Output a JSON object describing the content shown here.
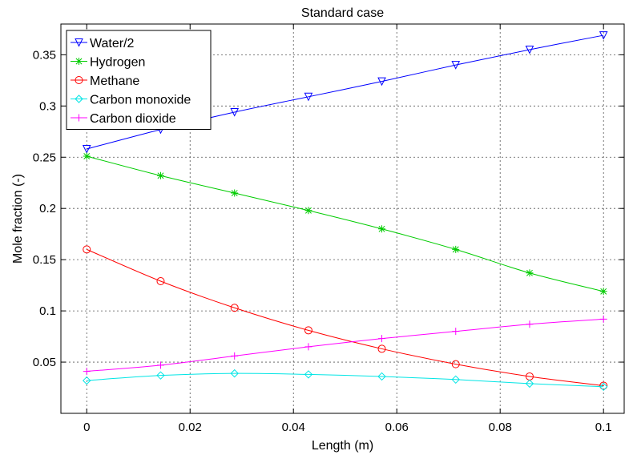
{
  "chart_data": {
    "type": "line",
    "title": "Standard case",
    "xlabel": "Length (m)",
    "ylabel": "Mole fraction (-)",
    "xlim": [
      -0.005,
      0.104
    ],
    "ylim": [
      0.0,
      0.38
    ],
    "xticks": [
      0,
      0.02,
      0.04,
      0.06,
      0.08,
      0.1
    ],
    "xtick_labels": [
      "0",
      "0.02",
      "0.04",
      "0.06",
      "0.08",
      "0.1"
    ],
    "yticks": [
      0.05,
      0.1,
      0.15,
      0.2,
      0.25,
      0.3,
      0.35
    ],
    "ytick_labels": [
      "0.05",
      "0.1",
      "0.15",
      "0.2",
      "0.25",
      "0.3",
      "0.35"
    ],
    "grid": true,
    "legend_position": "top-left",
    "x": [
      0,
      0.0143,
      0.0286,
      0.0429,
      0.0571,
      0.0714,
      0.0857,
      0.1
    ],
    "series": [
      {
        "name": "Water/2",
        "color": "#0000ff",
        "marker": "triangle-down",
        "values": [
          0.258,
          0.277,
          0.294,
          0.309,
          0.324,
          0.34,
          0.355,
          0.369
        ]
      },
      {
        "name": "Hydrogen",
        "color": "#00cc00",
        "marker": "star",
        "values": [
          0.251,
          0.232,
          0.215,
          0.198,
          0.18,
          0.16,
          0.137,
          0.119
        ]
      },
      {
        "name": "Methane",
        "color": "#ff0000",
        "marker": "circle",
        "values": [
          0.16,
          0.129,
          0.103,
          0.081,
          0.063,
          0.048,
          0.036,
          0.027
        ]
      },
      {
        "name": "Carbon monoxide",
        "color": "#00e5e5",
        "marker": "diamond",
        "values": [
          0.032,
          0.037,
          0.039,
          0.038,
          0.036,
          0.033,
          0.029,
          0.026
        ]
      },
      {
        "name": "Carbon dioxide",
        "color": "#ff00ff",
        "marker": "plus",
        "values": [
          0.041,
          0.047,
          0.056,
          0.065,
          0.073,
          0.08,
          0.087,
          0.092
        ]
      }
    ]
  }
}
